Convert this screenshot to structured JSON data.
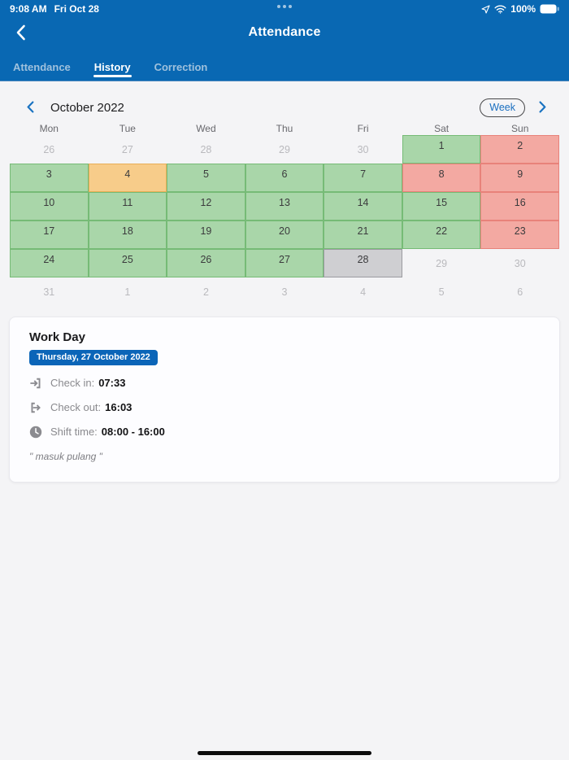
{
  "status_bar": {
    "time": "9:08 AM",
    "date": "Fri Oct 28",
    "battery_percent": "100%",
    "icons": [
      "location-icon",
      "wifi-icon",
      "battery-icon"
    ]
  },
  "nav": {
    "title": "Attendance",
    "back_icon": "chevron-left-icon"
  },
  "tabs": [
    {
      "label": "Attendance",
      "active": false
    },
    {
      "label": "History",
      "active": true
    },
    {
      "label": "Correction",
      "active": false
    }
  ],
  "calendar": {
    "month_label": "October 2022",
    "view_toggle_label": "Week",
    "prev_icon": "chevron-left-icon",
    "next_icon": "chevron-right-icon",
    "day_headers": [
      "Mon",
      "Tue",
      "Wed",
      "Thu",
      "Fri",
      "Sat",
      "Sun"
    ],
    "status_colors": {
      "present": "#a9d6a9",
      "late": "#f7cc8a",
      "absent": "#f3a9a2",
      "selected": "#cfcfd2"
    },
    "weeks": [
      [
        {
          "day": 26,
          "status": "outside"
        },
        {
          "day": 27,
          "status": "outside"
        },
        {
          "day": 28,
          "status": "outside"
        },
        {
          "day": 29,
          "status": "outside"
        },
        {
          "day": 30,
          "status": "outside"
        },
        {
          "day": 1,
          "status": "present"
        },
        {
          "day": 2,
          "status": "absent"
        }
      ],
      [
        {
          "day": 3,
          "status": "present"
        },
        {
          "day": 4,
          "status": "late"
        },
        {
          "day": 5,
          "status": "present"
        },
        {
          "day": 6,
          "status": "present"
        },
        {
          "day": 7,
          "status": "present"
        },
        {
          "day": 8,
          "status": "absent"
        },
        {
          "day": 9,
          "status": "absent"
        }
      ],
      [
        {
          "day": 10,
          "status": "present"
        },
        {
          "day": 11,
          "status": "present"
        },
        {
          "day": 12,
          "status": "present"
        },
        {
          "day": 13,
          "status": "present"
        },
        {
          "day": 14,
          "status": "present"
        },
        {
          "day": 15,
          "status": "present"
        },
        {
          "day": 16,
          "status": "absent"
        }
      ],
      [
        {
          "day": 17,
          "status": "present"
        },
        {
          "day": 18,
          "status": "present"
        },
        {
          "day": 19,
          "status": "present"
        },
        {
          "day": 20,
          "status": "present"
        },
        {
          "day": 21,
          "status": "present"
        },
        {
          "day": 22,
          "status": "present"
        },
        {
          "day": 23,
          "status": "absent"
        }
      ],
      [
        {
          "day": 24,
          "status": "present"
        },
        {
          "day": 25,
          "status": "present"
        },
        {
          "day": 26,
          "status": "present"
        },
        {
          "day": 27,
          "status": "present"
        },
        {
          "day": 28,
          "status": "selected"
        },
        {
          "day": 29,
          "status": "outside"
        },
        {
          "day": 30,
          "status": "outside"
        }
      ],
      [
        {
          "day": 31,
          "status": "outside"
        },
        {
          "day": 1,
          "status": "outside"
        },
        {
          "day": 2,
          "status": "outside"
        },
        {
          "day": 3,
          "status": "outside"
        },
        {
          "day": 4,
          "status": "outside"
        },
        {
          "day": 5,
          "status": "outside"
        },
        {
          "day": 6,
          "status": "outside"
        }
      ]
    ]
  },
  "detail_card": {
    "title": "Work Day",
    "date_badge": "Thursday, 27 October 2022",
    "rows": [
      {
        "icon": "check-in-icon",
        "label": "Check in:",
        "value": "07:33"
      },
      {
        "icon": "check-out-icon",
        "label": "Check out:",
        "value": "16:03"
      },
      {
        "icon": "clock-icon",
        "label": "Shift time:",
        "value": "08:00 - 16:00"
      }
    ],
    "note": "\" masuk pulang \""
  }
}
